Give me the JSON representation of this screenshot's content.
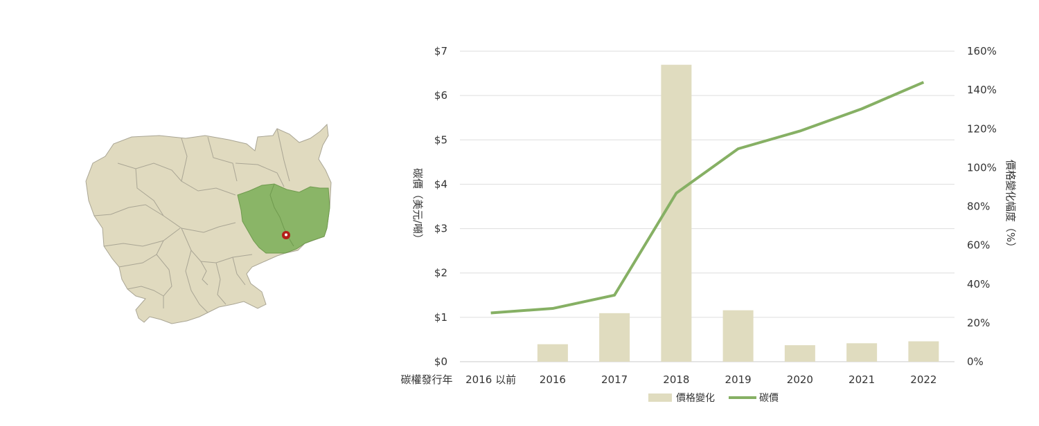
{
  "map": {
    "highlight_color": "#8ab567",
    "base_color": "#e0dabf",
    "border_color": "#a9a594",
    "marker_color": "#b3201a",
    "marker_icon": "map-pin-icon"
  },
  "chart_data": {
    "type": "bar",
    "categories": [
      "2016 以前",
      "2016",
      "2017",
      "2018",
      "2019",
      "2020",
      "2021",
      "2022"
    ],
    "xlabel": "碳權發行年",
    "ylabel_left": "碳價（美元/噸）",
    "ylabel_right": "價格變化幅度（%）",
    "ylim_left": [
      0,
      7
    ],
    "ylim_right": [
      0,
      160
    ],
    "yticks_left": [
      "$0",
      "$1",
      "$2",
      "$3",
      "$4",
      "$5",
      "$6",
      "$7"
    ],
    "yticks_right": [
      "0%",
      "20%",
      "40%",
      "60%",
      "80%",
      "100%",
      "120%",
      "140%",
      "160%"
    ],
    "grid": true,
    "legend_position": "bottom",
    "series": [
      {
        "name": "價格變化",
        "type": "bar",
        "axis": "right",
        "color": "#e0dcbf",
        "values": [
          null,
          9,
          25,
          153,
          26.5,
          8.5,
          9.5,
          10.5
        ]
      },
      {
        "name": "碳價",
        "type": "line",
        "axis": "left",
        "color": "#86b064",
        "values": [
          1.1,
          1.2,
          1.5,
          3.8,
          4.8,
          5.2,
          5.7,
          6.3
        ]
      }
    ]
  }
}
